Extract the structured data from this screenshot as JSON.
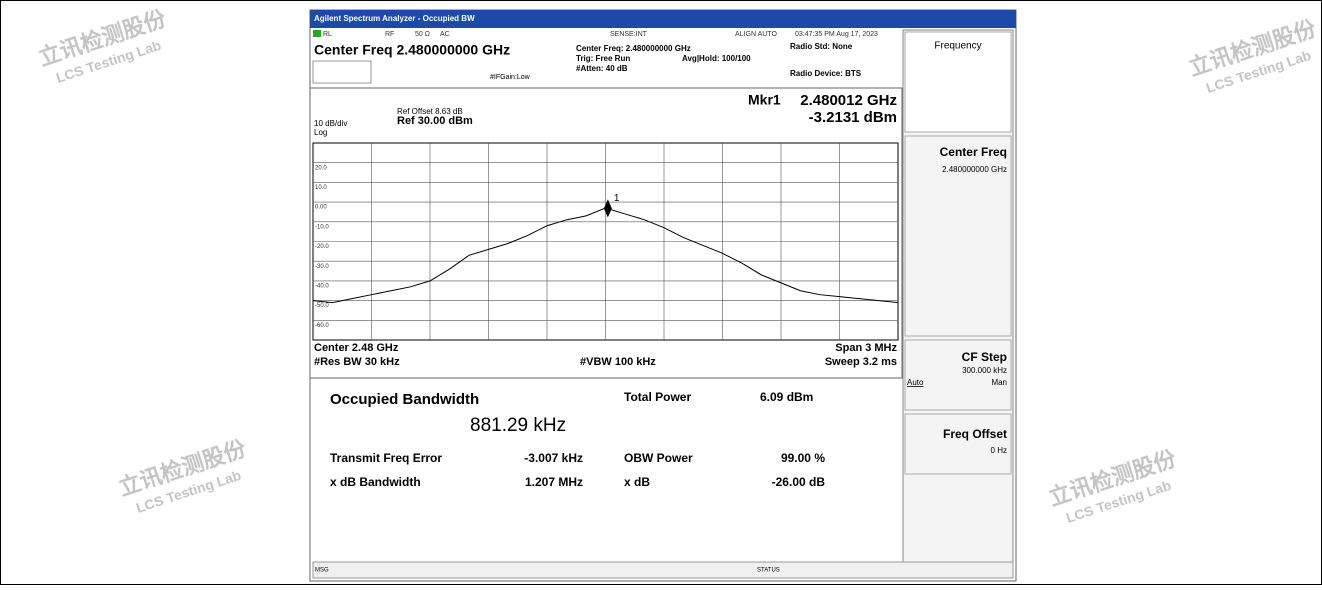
{
  "window_title": "Agilent Spectrum Analyzer - Occupied BW",
  "status_bar": {
    "rl": "RL",
    "rf": "RF",
    "impedance": "50 Ω",
    "coupling": "AC",
    "sense": "SENSE:INT",
    "align": "ALIGN AUTO",
    "timestamp": "03:47:35 PM Aug 17, 2023"
  },
  "header": {
    "center_freq": "Center Freq 2.480000000 GHz",
    "if_gain": "#IFGain:Low",
    "center_info": "Center Freq: 2.480000000 GHz",
    "trig": "Trig: Free Run",
    "atten": "#Atten: 40 dB",
    "avg_hold": "Avg|Hold: 100/100",
    "radio_std": "Radio Std: None",
    "radio_device": "Radio Device: BTS"
  },
  "chart_data": {
    "type": "line",
    "scale": "10 dB/div",
    "scale_type": "Log",
    "ref_offset": "Ref Offset 8.63 dB",
    "ref_level": "Ref 30.00 dBm",
    "marker_label": "Mkr1",
    "marker_freq": "2.480012 GHz",
    "marker_level": "-3.2131 dBm",
    "marker_id": "1",
    "marker": {
      "x": 2.480012,
      "value": -3.2131
    },
    "ylim": [
      -70,
      30
    ],
    "xlim": [
      2.4785,
      2.4815
    ],
    "yticks": [
      {
        "value": 20,
        "label": "20.0"
      },
      {
        "value": 10,
        "label": "10.0"
      },
      {
        "value": 0,
        "label": "0.00"
      },
      {
        "value": -10,
        "label": "-10.0"
      },
      {
        "value": -20,
        "label": "-20.0"
      },
      {
        "value": -30,
        "label": "-30.0"
      },
      {
        "value": -40,
        "label": "-40.0"
      },
      {
        "value": -50,
        "label": "-50.0"
      },
      {
        "value": -60,
        "label": "-60.0"
      }
    ],
    "color": "#000000",
    "x": [
      2.4785,
      2.4786,
      2.4787,
      2.4788,
      2.4789,
      2.479,
      2.4791,
      2.4792,
      2.4793,
      2.4794,
      2.4795,
      2.4796,
      2.4797,
      2.4798,
      2.4799,
      2.48,
      2.4801,
      2.4802,
      2.4803,
      2.4804,
      2.4805,
      2.4806,
      2.4807,
      2.4808,
      2.4809,
      2.481,
      2.4811,
      2.4812,
      2.4813,
      2.4814,
      2.4815
    ],
    "values": [
      -50,
      -51,
      -49,
      -47,
      -45,
      -43,
      -40,
      -34,
      -27,
      -24,
      -21,
      -17,
      -12,
      -9,
      -7,
      -3,
      -6,
      -9,
      -13,
      -18,
      -22,
      -26,
      -31,
      -37,
      -41,
      -45,
      -47,
      -48,
      -49,
      -50,
      -51
    ],
    "footer": {
      "center": "Center 2.48 GHz",
      "res_bw": "#Res BW 30 kHz",
      "vbw": "#VBW 100 kHz",
      "span": "Span 3 MHz",
      "sweep": "Sweep 3.2 ms"
    }
  },
  "results": {
    "obw_label": "Occupied Bandwidth",
    "obw_value": "881.29 kHz",
    "total_power_label": "Total Power",
    "total_power": "6.09 dBm",
    "freq_error_label": "Transmit Freq Error",
    "freq_error": "-3.007 kHz",
    "obw_power_label": "OBW Power",
    "obw_power": "99.00 %",
    "xdb_bw_label": "x dB Bandwidth",
    "xdb_bw": "1.207 MHz",
    "xdb_label": "x dB",
    "xdb": "-26.00 dB"
  },
  "softkeys": {
    "menu": "Frequency",
    "center_freq": "Center Freq",
    "center_freq_value": "2.480000000 GHz",
    "cf_step": "CF Step",
    "cf_step_value": "300.000 kHz",
    "auto": "Auto",
    "man": "Man",
    "freq_offset": "Freq Offset",
    "freq_offset_value": "0 Hz"
  },
  "bottom_bar": {
    "msg": "MSG",
    "status": "STATUS"
  },
  "watermark": {
    "name": "立讯检测股份",
    "lab": "LCS Testing Lab"
  }
}
